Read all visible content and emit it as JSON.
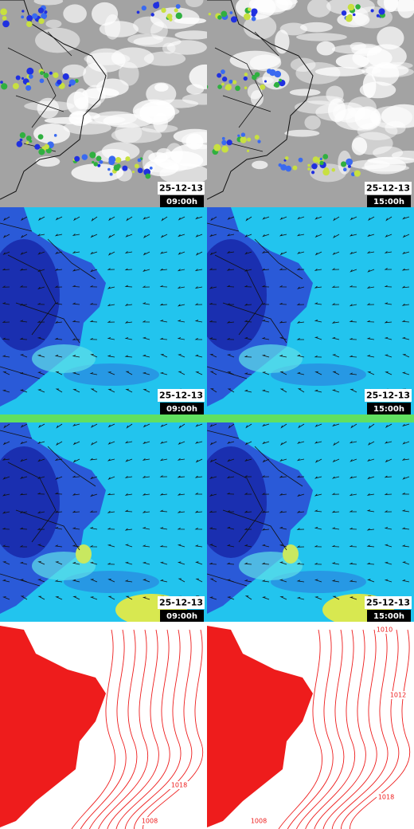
{
  "panels": [
    {
      "date": "25-12-13",
      "time": "09:00h"
    },
    {
      "date": "25-12-13",
      "time": "15:00h"
    },
    {
      "date": "25-12-13",
      "time": "09:00h"
    },
    {
      "date": "25-12-13",
      "time": "15:00h"
    },
    {
      "date": "25-12-13",
      "time": "09:00h"
    },
    {
      "date": "25-12-13",
      "time": "15:00h"
    }
  ],
  "pressure_panels": [
    {
      "contour_labels": [
        "1018",
        "1008"
      ]
    },
    {
      "contour_labels": [
        "1010",
        "1012",
        "1018",
        "1008"
      ]
    }
  ]
}
